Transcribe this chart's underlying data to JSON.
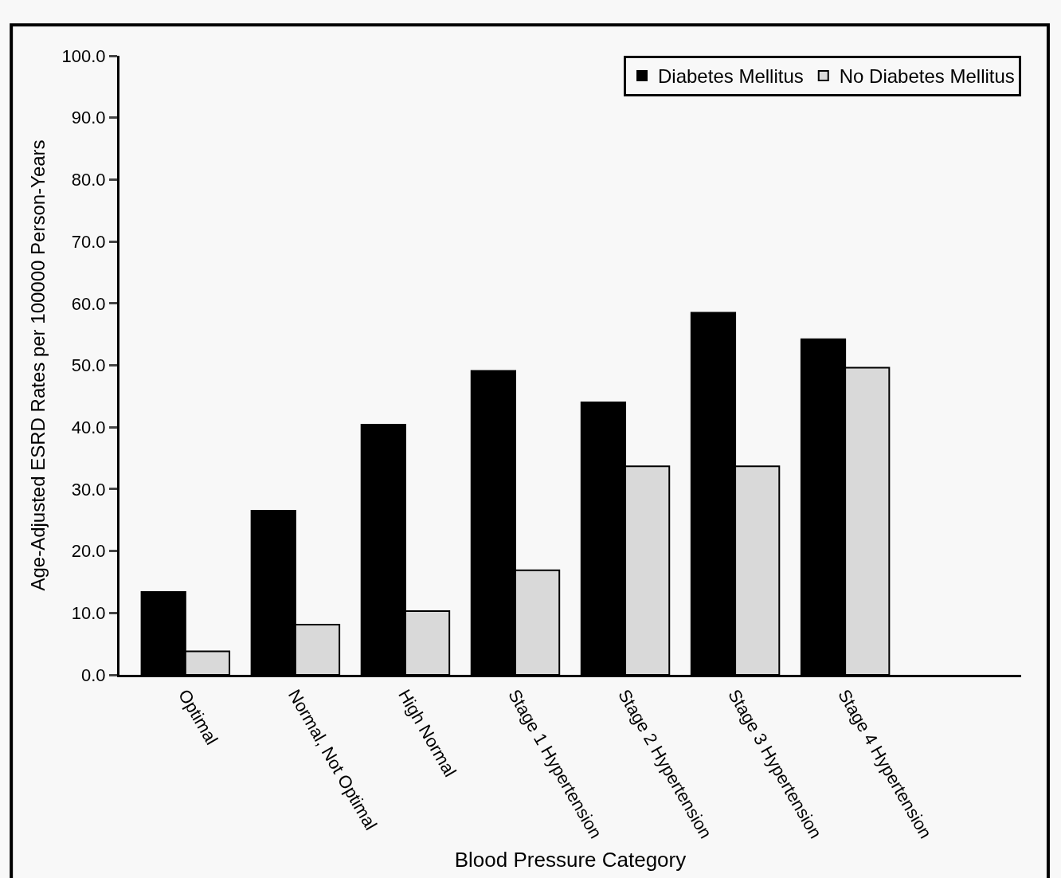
{
  "chart_data": {
    "type": "bar",
    "xlabel": "Blood Pressure Category",
    "ylabel": "Age-Adjusted ESRD Rates per 100000 Person-Years",
    "categories": [
      "Optimal",
      "Normal, Not Optimal",
      "High Normal",
      "Stage 1 Hypertension",
      "Stage 2 Hypertension",
      "Stage 3 Hypertension",
      "Stage 4 Hypertension"
    ],
    "series": [
      {
        "name": "Diabetes Mellitus",
        "color": "#000000",
        "values": [
          13.4,
          26.5,
          40.4,
          49.1,
          44.0,
          58.5,
          54.2
        ]
      },
      {
        "name": "No Diabetes Mellitus",
        "color": "#d9d9d9",
        "values": [
          3.8,
          8.1,
          10.3,
          16.9,
          33.7,
          33.7,
          49.6
        ]
      }
    ],
    "ylim": [
      0,
      100
    ],
    "yticks": [
      {
        "value": 0,
        "label": "0.0"
      },
      {
        "value": 10,
        "label": "10.0"
      },
      {
        "value": 20,
        "label": "20.0"
      },
      {
        "value": 30,
        "label": "30.0"
      },
      {
        "value": 40,
        "label": "40.0"
      },
      {
        "value": 50,
        "label": "50.0"
      },
      {
        "value": 60,
        "label": "60.0"
      },
      {
        "value": 70,
        "label": "70.0"
      },
      {
        "value": 80,
        "label": "80.0"
      },
      {
        "value": 90,
        "label": "90.0"
      },
      {
        "value": 100,
        "label": "100.0"
      }
    ],
    "grid": false,
    "legend": "top right"
  }
}
